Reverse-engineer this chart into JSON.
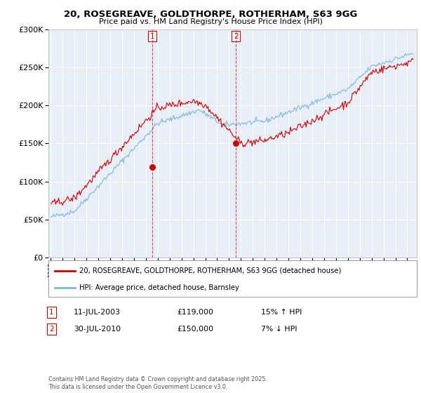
{
  "title": "20, ROSEGREAVE, GOLDTHORPE, ROTHERHAM, S63 9GG",
  "subtitle": "Price paid vs. HM Land Registry's House Price Index (HPI)",
  "legend_line1": "20, ROSEGREAVE, GOLDTHORPE, ROTHERHAM, S63 9GG (detached house)",
  "legend_line2": "HPI: Average price, detached house, Barnsley",
  "transaction1_date": "11-JUL-2003",
  "transaction1_price": "£119,000",
  "transaction1_hpi": "15% ↑ HPI",
  "transaction2_date": "30-JUL-2010",
  "transaction2_price": "£150,000",
  "transaction2_hpi": "7% ↓ HPI",
  "footer": "Contains HM Land Registry data © Crown copyright and database right 2025.\nThis data is licensed under the Open Government Licence v3.0.",
  "red_color": "#cc0000",
  "blue_color": "#7fb8d8",
  "bg_color": "#e8eef8",
  "marker1_x": 2003.54,
  "marker1_y": 119000,
  "marker2_x": 2010.58,
  "marker2_y": 150000,
  "vline1_x": 2003.54,
  "vline2_x": 2010.58,
  "ylim": [
    0,
    300000
  ],
  "xlim_start": 1994.8,
  "xlim_end": 2025.8,
  "seed": 42
}
